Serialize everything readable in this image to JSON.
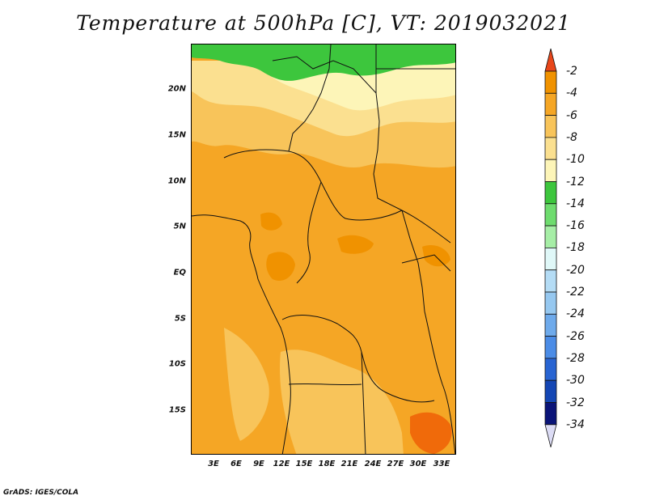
{
  "title": "Temperature at 500hPa [C], VT: 2019032021",
  "credit": "GrADS: IGES/COLA",
  "map": {
    "lon_range": [
      0,
      35
    ],
    "lat_range": [
      -20,
      25
    ],
    "lat_ticks": [
      {
        "value": 20,
        "label": "20N"
      },
      {
        "value": 15,
        "label": "15N"
      },
      {
        "value": 10,
        "label": "10N"
      },
      {
        "value": 5,
        "label": "5N"
      },
      {
        "value": 0,
        "label": "EQ"
      },
      {
        "value": -5,
        "label": "5S"
      },
      {
        "value": -10,
        "label": "10S"
      },
      {
        "value": -15,
        "label": "15S"
      }
    ],
    "lon_ticks": [
      {
        "value": 3,
        "label": "3E"
      },
      {
        "value": 6,
        "label": "6E"
      },
      {
        "value": 9,
        "label": "9E"
      },
      {
        "value": 12,
        "label": "12E"
      },
      {
        "value": 15,
        "label": "15E"
      },
      {
        "value": 18,
        "label": "18E"
      },
      {
        "value": 21,
        "label": "21E"
      },
      {
        "value": 24,
        "label": "24E"
      },
      {
        "value": 27,
        "label": "27E"
      },
      {
        "value": 30,
        "label": "30E"
      },
      {
        "value": 33,
        "label": "33E"
      }
    ],
    "dominant_range": "-6 to -4 C",
    "fill_colors": {
      "lt_-2": "#f06a0a",
      "-4_to_-2": "#f09200",
      "-6_to_-4": "#f5a625",
      "-8_to_-6": "#f8c45a",
      "-10_to_-8": "#fbe090",
      "-12_to_-10": "#fdf5b8",
      "-14_to_-12": "#3dc63d"
    }
  },
  "colorbar": {
    "arrow_top_color": "#e8461a",
    "arrow_bottom_color": "#dcdcf5",
    "levels": [
      {
        "label": "-2",
        "color": "#f06a0a"
      },
      {
        "label": "-4",
        "color": "#f09200"
      },
      {
        "label": "-6",
        "color": "#f5a625"
      },
      {
        "label": "-8",
        "color": "#f8c45a"
      },
      {
        "label": "-10",
        "color": "#fbe090"
      },
      {
        "label": "-12",
        "color": "#fdf5b8"
      },
      {
        "label": "-14",
        "color": "#3dc63d"
      },
      {
        "label": "-16",
        "color": "#6edc6e"
      },
      {
        "label": "-18",
        "color": "#a6eea6"
      },
      {
        "label": "-20",
        "color": "#e0f8f8"
      },
      {
        "label": "-22",
        "color": "#b4dcf5"
      },
      {
        "label": "-24",
        "color": "#96c8f0"
      },
      {
        "label": "-26",
        "color": "#6eaaeb"
      },
      {
        "label": "-28",
        "color": "#4b8ce6"
      },
      {
        "label": "-30",
        "color": "#2864d2"
      },
      {
        "label": "-32",
        "color": "#1446b4"
      },
      {
        "label": "-34",
        "color": "#0a1478"
      }
    ]
  }
}
